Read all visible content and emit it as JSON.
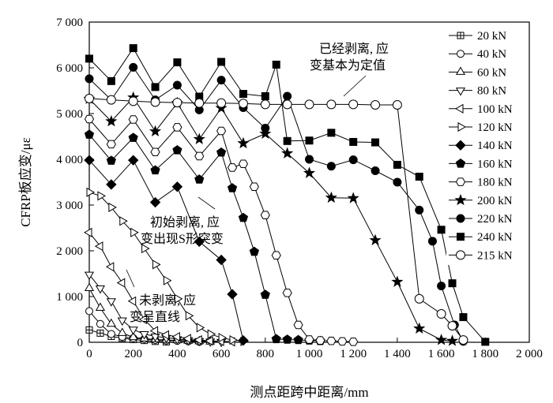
{
  "chart_data": {
    "type": "line",
    "xlabel": "测点距跨中距离/mm",
    "ylabel": "CFRP板应变/με",
    "xlim": [
      0,
      2000
    ],
    "ylim": [
      0,
      7000
    ],
    "xticks": [
      0,
      200,
      400,
      600,
      800,
      1000,
      1200,
      1400,
      1600,
      1800,
      2000
    ],
    "xtick_labels": [
      "0",
      "200",
      "400",
      "600",
      "800",
      "1 000",
      "1 200",
      "1 400",
      "1 600",
      "1 800",
      "2 000"
    ],
    "yticks": [
      0,
      1000,
      2000,
      3000,
      4000,
      5000,
      6000,
      7000
    ],
    "ytick_labels": [
      "0",
      "1 000",
      "2 000",
      "3 000",
      "4 000",
      "5 000",
      "6 000",
      "7 000"
    ],
    "grid": false,
    "legend_position": "right",
    "annotations": [
      {
        "lines": [
          "已经剥离, 应",
          "变基本为定值"
        ]
      },
      {
        "lines": [
          "初始剥离, 应",
          "变出现S形突变"
        ]
      },
      {
        "lines": [
          "未剥离, 应",
          "变呈直线"
        ]
      }
    ],
    "series": [
      {
        "name": "20 kN",
        "marker": "square-plus",
        "x": [
          0,
          50,
          100,
          150,
          200,
          250,
          300,
          350
        ],
        "y": [
          270,
          200,
          130,
          90,
          60,
          40,
          20,
          10
        ]
      },
      {
        "name": "40 kN",
        "marker": "circle-open",
        "x": [
          0,
          50,
          100,
          150,
          200,
          250,
          300,
          350,
          400,
          450,
          500
        ],
        "y": [
          680,
          400,
          180,
          120,
          90,
          70,
          50,
          40,
          30,
          20,
          10
        ]
      },
      {
        "name": "60 kN",
        "marker": "triangle-up-open",
        "x": [
          0,
          50,
          100,
          150,
          200,
          250,
          300,
          350,
          400,
          450,
          500,
          550
        ],
        "y": [
          1180,
          750,
          400,
          200,
          110,
          80,
          60,
          50,
          40,
          30,
          20,
          10
        ]
      },
      {
        "name": "80 kN",
        "marker": "triangle-down-open",
        "x": [
          0,
          50,
          100,
          150,
          200,
          250,
          300,
          350,
          400,
          450,
          500,
          550,
          600
        ],
        "y": [
          1480,
          1180,
          900,
          480,
          280,
          180,
          130,
          100,
          70,
          50,
          30,
          20,
          10
        ]
      },
      {
        "name": "100 kN",
        "marker": "triangle-left-open",
        "x": [
          0,
          50,
          100,
          150,
          200,
          250,
          300,
          350,
          400,
          450,
          500,
          550,
          600,
          650
        ],
        "y": [
          2400,
          2100,
          1650,
          1300,
          900,
          500,
          250,
          160,
          120,
          80,
          50,
          30,
          20,
          10
        ]
      },
      {
        "name": "120 kN",
        "marker": "triangle-right-open",
        "x": [
          0,
          50,
          100,
          150,
          200,
          250,
          300,
          350,
          400,
          450,
          500,
          550,
          600,
          650,
          700
        ],
        "y": [
          3280,
          3200,
          2950,
          2650,
          2400,
          2050,
          1700,
          1350,
          950,
          580,
          320,
          180,
          100,
          50,
          20
        ]
      },
      {
        "name": "140 kN",
        "marker": "diamond-filled",
        "x": [
          0,
          100,
          200,
          300,
          400,
          500,
          600,
          650,
          700
        ],
        "y": [
          3980,
          3450,
          3980,
          3060,
          3400,
          2200,
          1800,
          1050,
          40
        ]
      },
      {
        "name": "160 kN",
        "marker": "pentagon-filled",
        "x": [
          0,
          100,
          200,
          300,
          400,
          500,
          600,
          650,
          700,
          750,
          800,
          850,
          900,
          950,
          1000,
          1050
        ],
        "y": [
          4540,
          3970,
          4470,
          3760,
          4200,
          3560,
          4150,
          3370,
          2720,
          1980,
          1040,
          70,
          60,
          50,
          40,
          30
        ]
      },
      {
        "name": "180 kN",
        "marker": "hexagon-open",
        "x": [
          0,
          100,
          200,
          300,
          400,
          500,
          600,
          650,
          700,
          750,
          800,
          850,
          900,
          950,
          1000,
          1050,
          1100,
          1150,
          1200
        ],
        "y": [
          4880,
          4330,
          4870,
          4160,
          4700,
          4070,
          4620,
          3820,
          3900,
          3400,
          2780,
          1900,
          1080,
          380,
          60,
          40,
          30,
          20,
          10
        ]
      },
      {
        "name": "200 kN",
        "marker": "star-filled",
        "x": [
          0,
          100,
          200,
          300,
          400,
          500,
          600,
          700,
          800,
          900,
          1000,
          1100,
          1200,
          1300,
          1400,
          1500,
          1600,
          1650
        ],
        "y": [
          5320,
          4830,
          5350,
          4610,
          5230,
          4440,
          5120,
          4350,
          4560,
          4130,
          3700,
          3160,
          3150,
          2230,
          1320,
          300,
          50,
          30
        ]
      },
      {
        "name": "220 kN",
        "marker": "circle-filled",
        "x": [
          0,
          100,
          200,
          300,
          400,
          500,
          600,
          700,
          800,
          900,
          1000,
          1100,
          1200,
          1300,
          1400,
          1500,
          1560,
          1600,
          1660,
          1700
        ],
        "y": [
          5760,
          5300,
          6010,
          5300,
          5620,
          5080,
          5730,
          5130,
          4680,
          5380,
          4000,
          3850,
          3990,
          3750,
          3500,
          2890,
          2210,
          1230,
          380,
          20
        ]
      },
      {
        "name": "240 kN",
        "marker": "square-filled",
        "x": [
          0,
          100,
          200,
          300,
          400,
          500,
          600,
          700,
          800,
          850,
          900,
          1000,
          1100,
          1200,
          1300,
          1400,
          1500,
          1600,
          1650,
          1700,
          1800
        ],
        "y": [
          6200,
          5710,
          6430,
          5580,
          6120,
          5370,
          6130,
          5430,
          5380,
          6070,
          4400,
          4410,
          4580,
          4380,
          4370,
          3880,
          3620,
          2460,
          1290,
          550,
          10
        ]
      },
      {
        "name": "215 kN",
        "marker": "circle-open-large",
        "x": [
          0,
          100,
          200,
          300,
          400,
          500,
          600,
          700,
          800,
          900,
          1000,
          1100,
          1200,
          1300,
          1400,
          1500,
          1600,
          1650,
          1700
        ],
        "y": [
          5330,
          5300,
          5270,
          5250,
          5240,
          5230,
          5230,
          5220,
          5200,
          5200,
          5200,
          5200,
          5200,
          5190,
          5190,
          950,
          620,
          360,
          50
        ]
      }
    ]
  }
}
